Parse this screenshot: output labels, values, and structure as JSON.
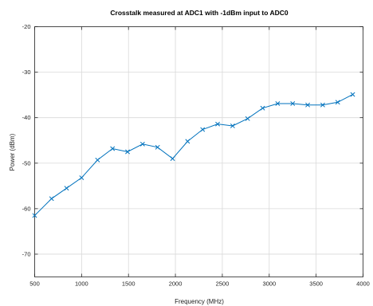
{
  "chart_data": {
    "type": "line",
    "title": "Crosstalk measured at ADC1 with -1dBm input to ADC0",
    "xlabel": "Frequency (MHz)",
    "ylabel": "Power (dBm)",
    "xlim": [
      500,
      4000
    ],
    "ylim": [
      -75,
      -20
    ],
    "xticks": [
      500,
      1000,
      1500,
      2000,
      2500,
      3000,
      3500,
      4000
    ],
    "yticks": [
      -20,
      -30,
      -40,
      -50,
      -60,
      -70
    ],
    "grid": true,
    "marker": "x",
    "color": "#0072bd",
    "series": [
      {
        "x": [
          500,
          680,
          840,
          1000,
          1170,
          1330,
          1490,
          1650,
          1810,
          1970,
          2130,
          2290,
          2450,
          2610,
          2770,
          2930,
          3090,
          3250,
          3410,
          3570,
          3730,
          3890
        ],
        "y": [
          -61.5,
          -57.8,
          -55.5,
          -53.2,
          -49.3,
          -46.8,
          -47.5,
          -45.8,
          -46.5,
          -49.0,
          -45.2,
          -42.6,
          -41.4,
          -41.8,
          -40.2,
          -37.9,
          -36.9,
          -36.9,
          -37.2,
          -37.2,
          -36.6,
          -34.9
        ]
      }
    ]
  }
}
